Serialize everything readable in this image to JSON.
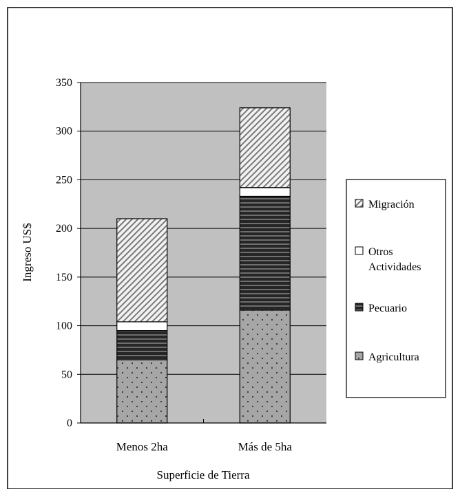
{
  "chart_data": {
    "type": "bar",
    "stacked": true,
    "title": "",
    "xlabel": "Superficie de Tierra",
    "ylabel": "Ingreso US$",
    "ylim": [
      0,
      350
    ],
    "yticks": [
      0,
      50,
      100,
      150,
      200,
      250,
      300,
      350
    ],
    "grid": true,
    "legend_position": "right",
    "plot_background": "#c0c0c0",
    "categories": [
      "Menos 2ha",
      "Más de 5ha"
    ],
    "series": [
      {
        "name": "Agricultura",
        "values": [
          65,
          116
        ],
        "color": "#a6a6a6",
        "pattern": "dots"
      },
      {
        "name": "Pecuario",
        "values": [
          30,
          117
        ],
        "color": "#404040",
        "pattern": "horizontal-stripes"
      },
      {
        "name": "Otros Actividades",
        "values": [
          9,
          9
        ],
        "color": "#ffffff",
        "pattern": "solid"
      },
      {
        "name": "Migración",
        "values": [
          106,
          82
        ],
        "color": "#e8e8e8",
        "pattern": "diagonal-stripes"
      }
    ],
    "legend_order": [
      "Migración",
      "Otros Actividades",
      "Pecuario",
      "Agricultura"
    ]
  }
}
